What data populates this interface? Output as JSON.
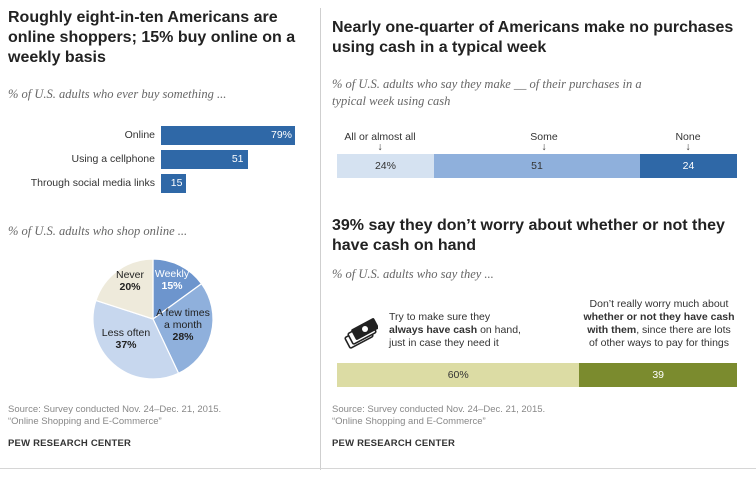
{
  "left": {
    "title": [
      "Roughly eight-in-ten Americans are",
      "online shoppers; 15% buy online on a",
      "weekly basis"
    ],
    "bar_subtitle": "% of U.S. adults who ever buy something ...",
    "pie_subtitle": "% of U.S. adults who shop online ...",
    "source": [
      "Source: Survey conducted Nov. 24–Dec. 21, 2015.",
      "“Online Shopping and E-Commerce”"
    ],
    "brand": "PEW RESEARCH CENTER"
  },
  "right": {
    "top_title": [
      "Nearly one-quarter of Americans make no purchases",
      "using cash in a typical week"
    ],
    "top_subtitle": [
      "% of U.S. adults who say they make __ of their purchases in a",
      "typical week using cash"
    ],
    "bottom_title": [
      "39% say they don’t worry about whether or not they",
      "have cash on hand"
    ],
    "bottom_subtitle": "% of U.S. adults who say they ...",
    "left_statement": {
      "pre": "Try to make sure they",
      "bold": "always have cash",
      "post": " on hand,",
      "line3": "just in case they need it"
    },
    "right_statement": {
      "line1": "Don’t really worry much about",
      "bold1": "whether or not they have cash",
      "bold2": "with them",
      "post2": ", since there are lots",
      "line4": "of other ways to pay for things"
    },
    "source": [
      "Source: Survey conducted Nov. 24–Dec. 21, 2015.",
      "“Online Shopping and E-Commerce”"
    ],
    "brand": "PEW RESEARCH CENTER",
    "icon": "cash-icon"
  },
  "colors": {
    "dark_blue": "#2f68a7",
    "mid_blue": "#8fb0dc",
    "light_blue": "#d5e2f1",
    "pie_light": "#c7d7ee",
    "cream": "#eeeadb",
    "olive_light": "#dcdca4",
    "olive_dark": "#7b8b2e"
  },
  "chart_data": [
    {
      "type": "bar",
      "title": "% of U.S. adults who ever buy something ...",
      "categories": [
        "Online",
        "Using a cellphone",
        "Through social media links"
      ],
      "values": [
        79,
        51,
        15
      ],
      "value_labels": [
        "79%",
        "51",
        "15"
      ],
      "xlim": [
        0,
        100
      ]
    },
    {
      "type": "pie",
      "title": "% of U.S. adults who shop online ...",
      "slices": [
        {
          "label": "Weekly",
          "value": 15,
          "text": "15%",
          "color": "#6d95cd"
        },
        {
          "label": "A few times a month",
          "value": 28,
          "text": "28%",
          "color": "#8fb0dc"
        },
        {
          "label": "Less often",
          "value": 37,
          "text": "37%",
          "color": "#c7d7ee"
        },
        {
          "label": "Never",
          "value": 20,
          "text": "20%",
          "color": "#eeeadb"
        }
      ]
    },
    {
      "type": "bar",
      "stacked": true,
      "title": "% of U.S. adults who say they make __ of their purchases in a typical week using cash",
      "series": [
        {
          "name": "All or almost all",
          "value": 24,
          "text": "24%",
          "color": "#d5e2f1"
        },
        {
          "name": "Some",
          "value": 51,
          "text": "51",
          "color": "#8fb0dc"
        },
        {
          "name": "None",
          "value": 24,
          "text": "24",
          "color": "#2f68a7"
        }
      ]
    },
    {
      "type": "bar",
      "stacked": true,
      "title": "% of U.S. adults who say they ...",
      "series": [
        {
          "name": "Try to make sure they always have cash on hand, just in case they need it",
          "value": 60,
          "text": "60%",
          "color": "#dcdca4"
        },
        {
          "name": "Don’t really worry much about whether or not they have cash with them, since there are lots of other ways to pay for things",
          "value": 39,
          "text": "39",
          "color": "#7b8b2e"
        }
      ]
    }
  ]
}
